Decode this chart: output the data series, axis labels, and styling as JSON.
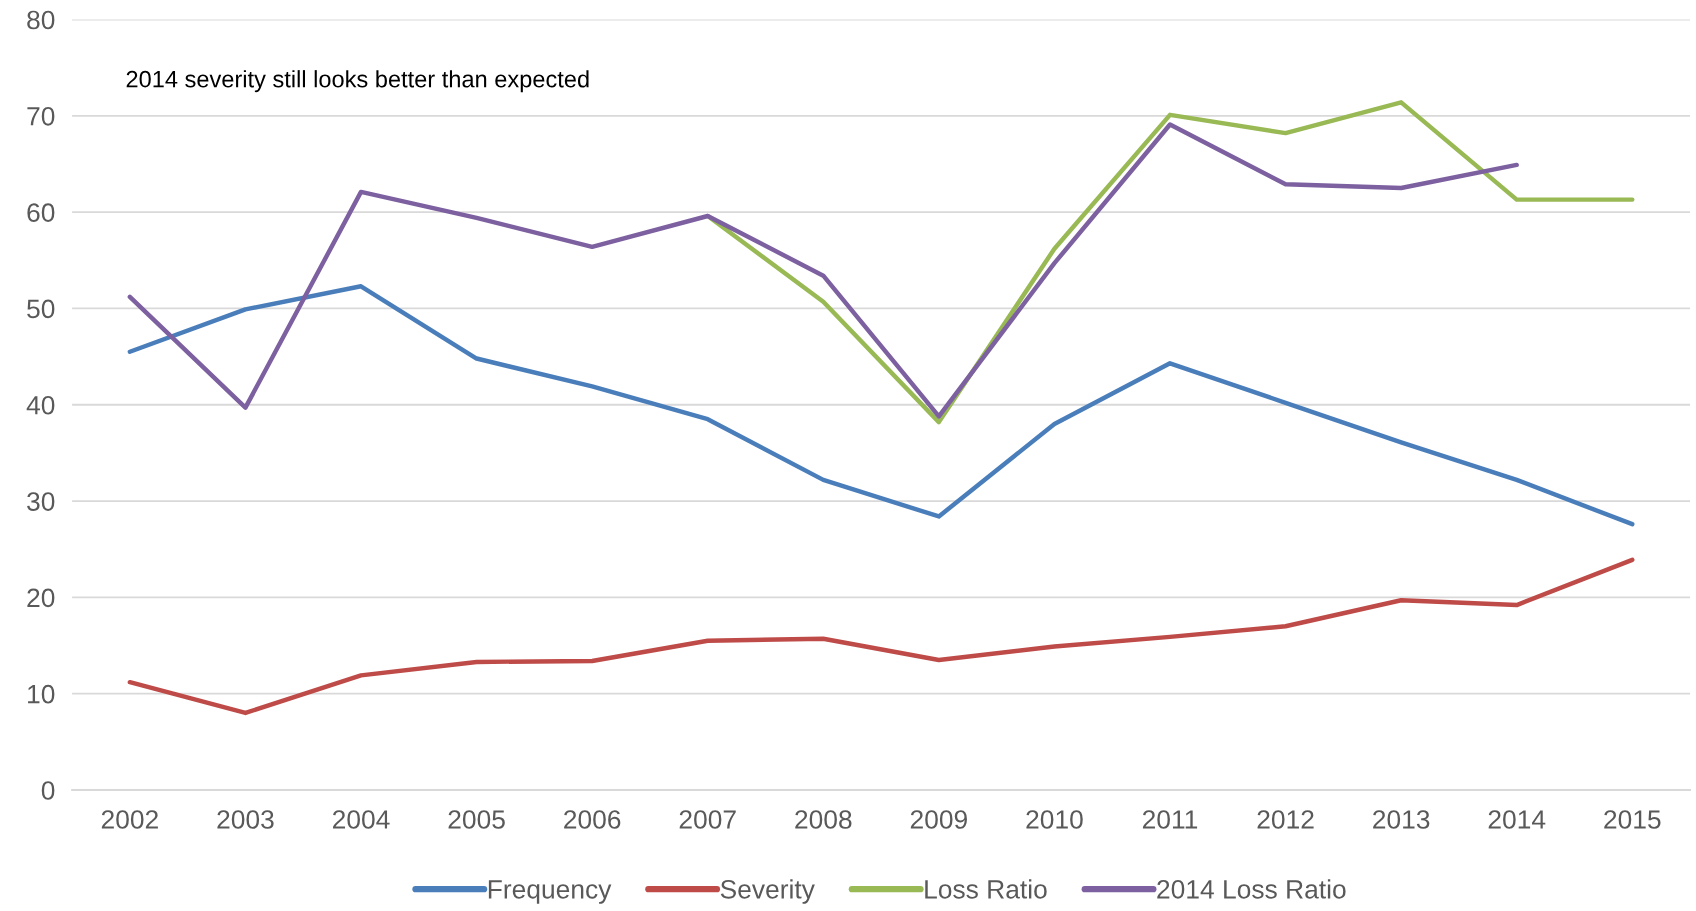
{
  "chart_data": {
    "type": "line",
    "categories": [
      "2002",
      "2003",
      "2004",
      "2005",
      "2006",
      "2007",
      "2008",
      "2009",
      "2010",
      "2011",
      "2012",
      "2013",
      "2014",
      "2015"
    ],
    "series": [
      {
        "name": "Frequency",
        "color": "#4a7ebb",
        "values": [
          45.5,
          49.9,
          52.3,
          44.8,
          41.9,
          38.5,
          32.2,
          28.4,
          38.0,
          44.3,
          40.2,
          36.1,
          32.2,
          27.6
        ]
      },
      {
        "name": "Severity",
        "color": "#be4b48",
        "values": [
          11.2,
          8.0,
          11.9,
          13.3,
          13.4,
          15.5,
          15.7,
          13.5,
          14.9,
          15.9,
          17.0,
          19.7,
          19.2,
          23.9
        ]
      },
      {
        "name": "Loss Ratio",
        "color": "#98b954",
        "values": [
          null,
          null,
          null,
          null,
          null,
          59.6,
          50.7,
          38.2,
          56.2,
          70.1,
          68.2,
          71.4,
          61.3,
          61.3
        ]
      },
      {
        "name": "2014 Loss Ratio",
        "color": "#7d60a0",
        "values": [
          51.2,
          39.7,
          62.1,
          59.4,
          56.4,
          59.6,
          53.4,
          38.8,
          54.7,
          69.1,
          62.9,
          62.5,
          64.9,
          null
        ]
      }
    ],
    "ylim": [
      0,
      80
    ],
    "yticks": [
      0,
      10,
      20,
      30,
      40,
      50,
      60,
      70,
      80
    ],
    "grid": "y",
    "legend": "bottom",
    "annotations": [
      "2014 severity still looks better than expected"
    ]
  }
}
